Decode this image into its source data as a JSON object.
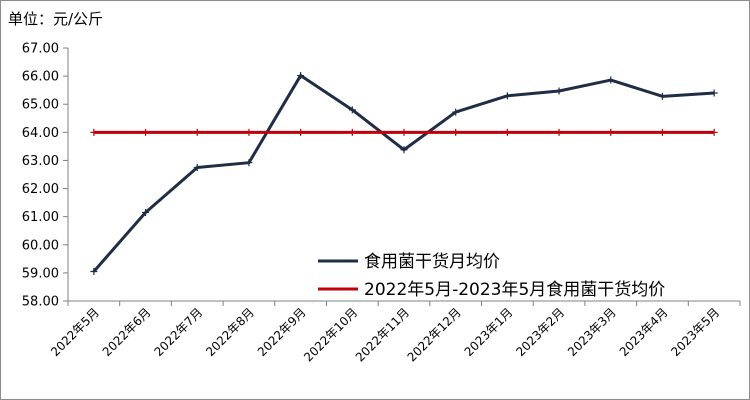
{
  "unit_label": "单位：元/公斤",
  "chart_data": {
    "type": "line",
    "title": "",
    "ylabel": "单位：元/公斤",
    "xlabel": "",
    "ylim": [
      58.0,
      67.0
    ],
    "ytick_step": 1.0,
    "ytick_labels": [
      "58.00",
      "59.00",
      "60.00",
      "61.00",
      "62.00",
      "63.00",
      "64.00",
      "65.00",
      "66.00",
      "67.00"
    ],
    "categories": [
      "2022年5月",
      "2022年6月",
      "2022年7月",
      "2022年8月",
      "2022年9月",
      "2022年10月",
      "2022年11月",
      "2022年12月",
      "2023年1月",
      "2023年2月",
      "2023年3月",
      "2023年4月",
      "2023年5月"
    ],
    "grid": false,
    "legend_position": "center-right",
    "series": [
      {
        "name": "食用菌干货月均价",
        "color": "#1f2d45",
        "marker": "cross",
        "values": [
          59.05,
          61.15,
          62.75,
          62.92,
          66.02,
          64.8,
          63.38,
          64.72,
          65.3,
          65.47,
          65.86,
          65.28,
          65.4
        ]
      },
      {
        "name": "2022年5月-2023年5月食用菌干货均价",
        "color": "#c0000a",
        "marker": "cross",
        "values": [
          64.0,
          64.0,
          64.0,
          64.0,
          64.0,
          64.0,
          64.0,
          64.0,
          64.0,
          64.0,
          64.0,
          64.0,
          64.0
        ]
      }
    ]
  }
}
